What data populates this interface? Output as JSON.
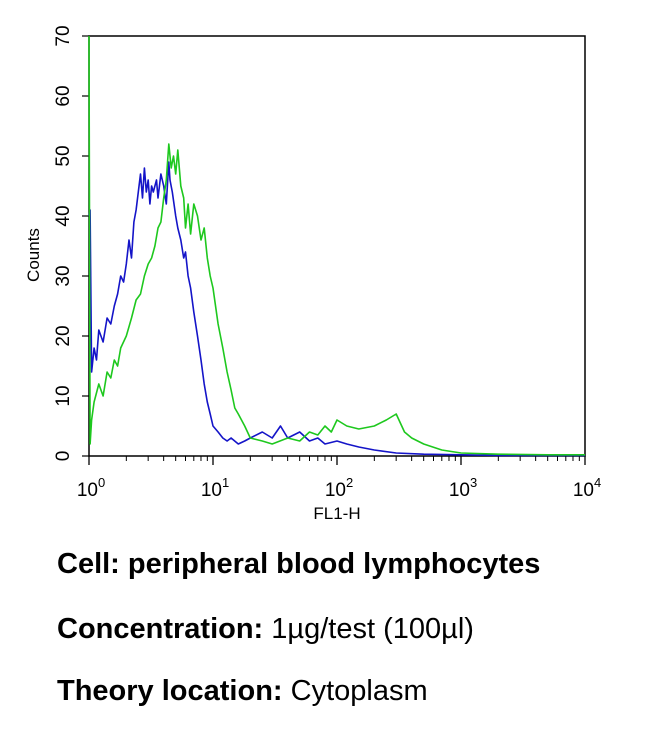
{
  "chart_data": {
    "type": "line",
    "xlabel": "FL1-H",
    "ylabel": "Counts",
    "x_scale": "log",
    "xlim": [
      1,
      10000
    ],
    "ylim": [
      0,
      70
    ],
    "x_ticks": [
      {
        "base": "10",
        "exp": "0"
      },
      {
        "base": "10",
        "exp": "1"
      },
      {
        "base": "10",
        "exp": "2"
      },
      {
        "base": "10",
        "exp": "3"
      },
      {
        "base": "10",
        "exp": "4"
      }
    ],
    "y_ticks": [
      "0",
      "10",
      "20",
      "30",
      "40",
      "50",
      "60",
      "70"
    ],
    "y_tick_values": [
      0,
      10,
      20,
      30,
      40,
      50,
      60,
      70
    ],
    "grid": false,
    "legend": "none",
    "series": [
      {
        "color": "#1414c8",
        "x": [
          1.0,
          1.02,
          1.05,
          1.1,
          1.15,
          1.2,
          1.3,
          1.4,
          1.5,
          1.6,
          1.7,
          1.8,
          1.9,
          2.0,
          2.1,
          2.2,
          2.3,
          2.4,
          2.5,
          2.6,
          2.7,
          2.8,
          2.9,
          3.0,
          3.1,
          3.2,
          3.3,
          3.5,
          3.6,
          3.8,
          4.0,
          4.2,
          4.4,
          4.5,
          4.7,
          5.0,
          5.2,
          5.5,
          5.8,
          6.0,
          6.3,
          6.6,
          7.0,
          7.5,
          8.0,
          8.5,
          9.0,
          9.5,
          10,
          11,
          12,
          13,
          14,
          16,
          18,
          20,
          25,
          30,
          35,
          40,
          50,
          60,
          70,
          80,
          100,
          120,
          150,
          200,
          300,
          500,
          1000,
          2000,
          5000,
          10000
        ],
        "y": [
          40,
          41,
          14,
          18,
          16,
          21,
          19,
          23,
          22,
          25,
          27,
          30,
          29,
          32,
          36,
          33,
          39,
          41,
          44,
          47,
          43,
          48,
          44,
          46,
          42,
          45,
          44,
          46,
          43,
          47,
          45,
          42,
          49,
          46,
          44,
          40,
          38,
          36,
          33,
          34,
          30,
          28,
          24,
          20,
          16,
          12,
          9,
          7,
          5,
          4,
          3,
          2.5,
          3,
          2,
          2.5,
          3,
          4,
          3,
          5,
          3,
          4,
          2.5,
          3,
          2,
          2.5,
          2,
          1.5,
          1,
          0.5,
          0.3,
          0.2,
          0.1,
          0.1,
          0.1
        ]
      },
      {
        "color": "#1ec81e",
        "x": [
          1.0,
          1.02,
          1.05,
          1.1,
          1.2,
          1.3,
          1.4,
          1.5,
          1.6,
          1.7,
          1.8,
          2.0,
          2.2,
          2.4,
          2.6,
          2.8,
          3.0,
          3.2,
          3.4,
          3.6,
          3.8,
          4.0,
          4.2,
          4.4,
          4.6,
          4.8,
          5.0,
          5.2,
          5.5,
          5.8,
          6.0,
          6.3,
          6.6,
          7.0,
          7.5,
          8.0,
          8.5,
          9.0,
          9.5,
          10,
          11,
          12,
          13,
          14,
          15,
          16,
          18,
          20,
          25,
          30,
          40,
          50,
          60,
          70,
          80,
          90,
          100,
          120,
          150,
          200,
          250,
          300,
          350,
          400,
          500,
          700,
          1000,
          2000,
          5000,
          10000
        ],
        "y": [
          70,
          2,
          6,
          9,
          12,
          10,
          14,
          13,
          16,
          15,
          18,
          20,
          23,
          26,
          27,
          30,
          32,
          33,
          35,
          38,
          39,
          43,
          46,
          52,
          48,
          50,
          47,
          51,
          45,
          43,
          38,
          42,
          37,
          42,
          40,
          36,
          38,
          33,
          30,
          28,
          22,
          18,
          14,
          11,
          8,
          7,
          5,
          3,
          2.5,
          2,
          3,
          2.5,
          4,
          3.5,
          5,
          4,
          6,
          5,
          4.5,
          5,
          6,
          7,
          4,
          3,
          2,
          1,
          0.5,
          0.3,
          0.2,
          0.2
        ]
      }
    ]
  },
  "captions": [
    {
      "label": "Cell:",
      "value": "peripheral blood lymphocytes"
    },
    {
      "label": "Concentration:",
      "value": "1µg/test (100µl)"
    },
    {
      "label": "Theory location:",
      "value": "Cytoplasm"
    }
  ]
}
